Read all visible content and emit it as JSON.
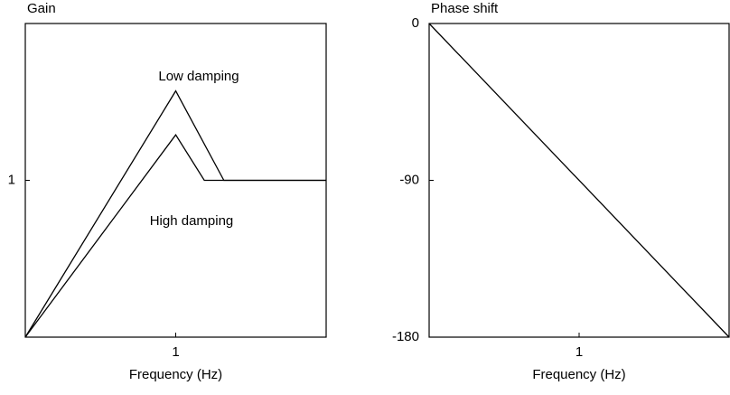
{
  "chart_data": [
    {
      "type": "line",
      "title": "Gain",
      "xlabel": "Frequency (Hz)",
      "xlim": [
        0,
        2
      ],
      "xticks": [
        1
      ],
      "ylim": [
        0,
        2
      ],
      "yticks": [
        1
      ],
      "series": [
        {
          "name": "Low damping",
          "color": "#000000",
          "x": [
            0,
            1,
            1.32,
            2
          ],
          "values": [
            0,
            1.57,
            1,
            1
          ]
        },
        {
          "name": "High damping",
          "color": "#000000",
          "x": [
            0,
            1,
            1.19,
            2
          ],
          "values": [
            0,
            1.29,
            1,
            1
          ]
        }
      ]
    },
    {
      "type": "line",
      "title": "Phase shift",
      "xlabel": "Frequency (Hz)",
      "xlim": [
        0,
        2
      ],
      "xticks": [
        1
      ],
      "ylim": [
        -180,
        0
      ],
      "yticks": [
        0,
        -90,
        -180
      ],
      "series": [
        {
          "color": "#000000",
          "x": [
            0,
            2
          ],
          "values": [
            0,
            -180
          ]
        }
      ]
    }
  ]
}
